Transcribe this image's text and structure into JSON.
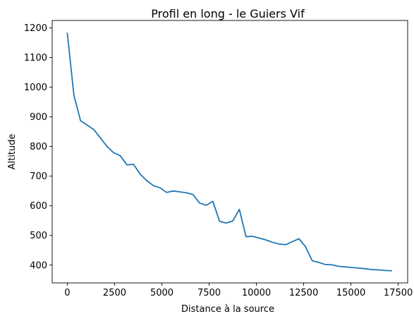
{
  "chart_data": {
    "type": "line",
    "title": "Profil en long - le Guiers Vif",
    "xlabel": "Distance à la source",
    "ylabel": "Altitude",
    "xlim": [
      -800,
      18000
    ],
    "ylim": [
      340,
      1225
    ],
    "x_ticks": [
      0,
      2500,
      5000,
      7500,
      10000,
      12500,
      15000,
      17500
    ],
    "y_ticks": [
      400,
      500,
      600,
      700,
      800,
      900,
      1000,
      1100,
      1200
    ],
    "grid": false,
    "legend": "none",
    "series": [
      {
        "color": "#1f77b4",
        "x": [
          0,
          350,
          700,
          1050,
          1400,
          1750,
          2100,
          2450,
          2800,
          3150,
          3500,
          3850,
          4200,
          4550,
          4900,
          5250,
          5600,
          5950,
          6300,
          6650,
          7000,
          7350,
          7700,
          8050,
          8400,
          8750,
          9100,
          9450,
          9800,
          10150,
          10500,
          10850,
          11200,
          11550,
          11900,
          12250,
          12600,
          12950,
          13300,
          13650,
          14000,
          14350,
          14700,
          15050,
          15400,
          15750,
          16100,
          16450,
          16800,
          17150
        ],
        "y": [
          1182,
          972,
          887,
          872,
          857,
          829,
          800,
          779,
          769,
          738,
          740,
          707,
          685,
          668,
          661,
          645,
          650,
          647,
          644,
          638,
          609,
          602,
          615,
          548,
          542,
          549,
          588,
          496,
          497,
          491,
          485,
          477,
          471,
          469,
          479,
          489,
          462,
          415,
          409,
          402,
          401,
          396,
          394,
          392,
          390,
          388,
          385,
          384,
          382,
          381
        ]
      }
    ]
  }
}
